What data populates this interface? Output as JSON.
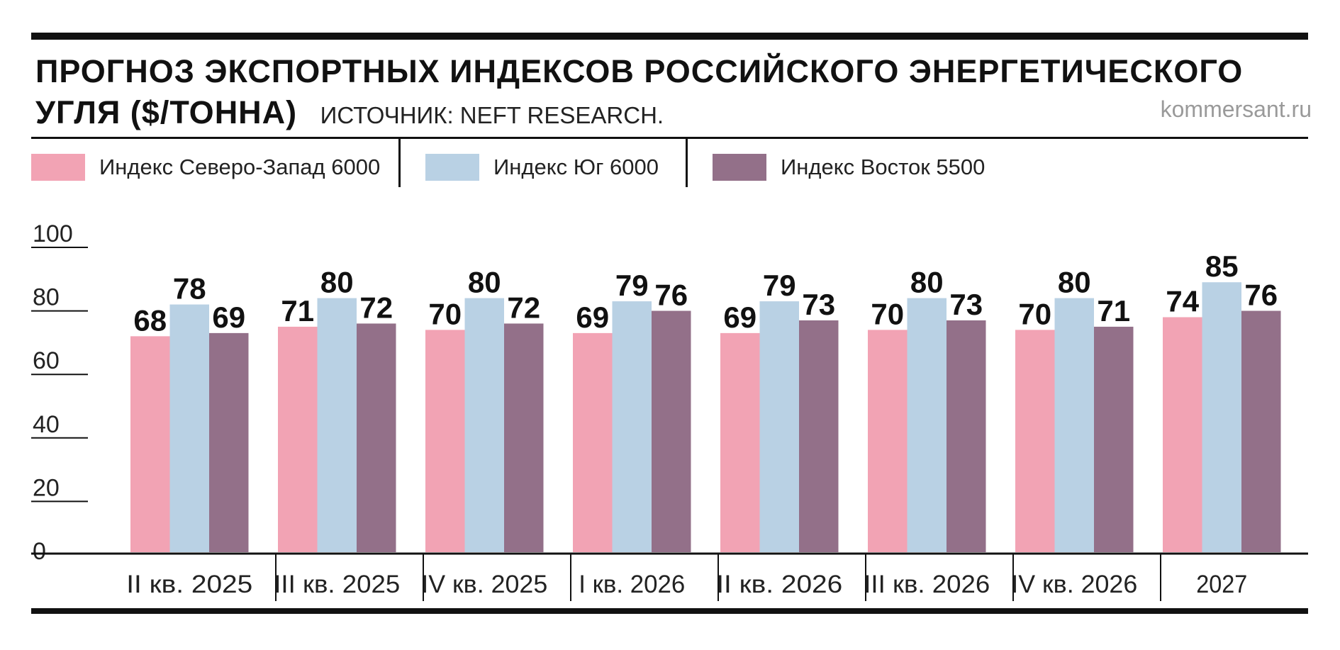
{
  "header": {
    "title_line1": "ПРОГНОЗ ЭКСПОРТНЫХ ИНДЕКСОВ РОССИЙСКОГО ЭНЕРГЕТИЧЕСКОГО",
    "title_line2": "УГЛЯ ($/ТОННА)",
    "source": "ИСТОЧНИК: NEFT RESEARCH.",
    "site": "kommersant.ru"
  },
  "colors": {
    "series_0": "#f2a3b4",
    "series_1": "#b9d1e4",
    "series_2": "#937089",
    "rule": "#111111"
  },
  "chart_data": {
    "type": "bar",
    "title": "ПРОГНОЗ ЭКСПОРТНЫХ ИНДЕКСОВ РОССИЙСКОГО ЭНЕРГЕТИЧЕСКОГО УГЛЯ ($/ТОННА)",
    "categories": [
      "II кв. 2025",
      "III кв. 2025",
      "IV кв. 2025",
      "I кв. 2026",
      "II кв. 2026",
      "III кв. 2026",
      "IV кв. 2026",
      "2027"
    ],
    "series": [
      {
        "name": "Индекс Северо-Запад 6000",
        "values": [
          68,
          71,
          70,
          69,
          69,
          70,
          70,
          74
        ]
      },
      {
        "name": "Индекс Юг 6000",
        "values": [
          78,
          80,
          80,
          79,
          79,
          80,
          80,
          85
        ]
      },
      {
        "name": "Индекс Восток 5500",
        "values": [
          69,
          72,
          72,
          76,
          73,
          73,
          71,
          76
        ]
      }
    ],
    "yticks": [
      0,
      20,
      40,
      60,
      80,
      100
    ],
    "ylim": [
      0,
      100
    ],
    "xlabel": "",
    "ylabel": "",
    "grid": false,
    "legend": "top"
  }
}
